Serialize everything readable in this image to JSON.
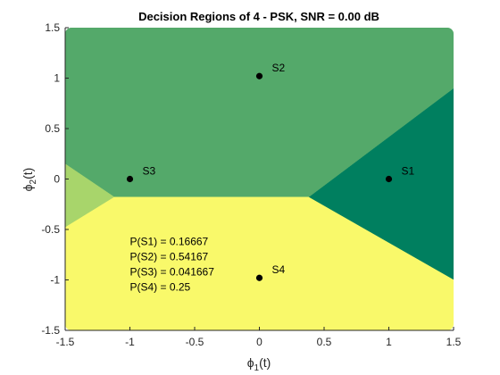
{
  "chart_data": {
    "type": "scatter",
    "title": "Decision Regions of 4 - PSK, SNR = 0.00 dB",
    "xlabel": {
      "base": "ϕ",
      "sub": "1",
      "suffix": "(t)"
    },
    "ylabel": {
      "base": "ϕ",
      "sub": "2",
      "suffix": "(t)"
    },
    "xlim": [
      -1.5,
      1.5
    ],
    "ylim": [
      -1.5,
      1.5
    ],
    "xticks": [
      -1.5,
      -1,
      -0.5,
      0,
      0.5,
      1,
      1.5
    ],
    "yticks": [
      -1.5,
      -1,
      -0.5,
      0,
      0.5,
      1,
      1.5
    ],
    "xtick_labels": [
      "-1.5",
      "-1",
      "-0.5",
      "0",
      "0.5",
      "1",
      "1.5"
    ],
    "ytick_labels": [
      "-1.5",
      "-1",
      "-0.5",
      "0",
      "0.5",
      "1",
      "1.5"
    ],
    "grid": false,
    "points": [
      {
        "label": "S1",
        "x": 1,
        "y": 0
      },
      {
        "label": "S2",
        "x": 0,
        "y": 1.02
      },
      {
        "label": "S3",
        "x": -1,
        "y": 0
      },
      {
        "label": "S4",
        "x": 0,
        "y": -0.98
      }
    ],
    "regions": [
      {
        "name": "S1",
        "color": "#007f5f",
        "polygon": [
          [
            0.38,
            -0.18
          ],
          [
            1.5,
            -1.0
          ],
          [
            1.5,
            0.9
          ]
        ]
      },
      {
        "name": "S2",
        "color": "#54a96a",
        "polygon": [
          [
            -1.5,
            1.5
          ],
          [
            1.5,
            1.5
          ],
          [
            1.5,
            0.9
          ],
          [
            0.38,
            -0.18
          ],
          [
            -1.12,
            -0.18
          ],
          [
            -1.5,
            0.15
          ]
        ]
      },
      {
        "name": "S3",
        "color": "#a8d56b",
        "polygon": [
          [
            -1.5,
            0.15
          ],
          [
            -1.12,
            -0.18
          ],
          [
            -1.5,
            -0.48
          ]
        ]
      },
      {
        "name": "S4",
        "color": "#f9f96a",
        "polygon": [
          [
            -1.5,
            -0.48
          ],
          [
            -1.12,
            -0.18
          ],
          [
            0.38,
            -0.18
          ],
          [
            1.5,
            -1.0
          ],
          [
            1.5,
            -1.5
          ],
          [
            -1.5,
            -1.5
          ]
        ]
      }
    ],
    "annotations": [
      "P(S1) = 0.16667",
      "P(S2) = 0.54167",
      "P(S3) = 0.041667",
      "P(S4) = 0.25"
    ]
  }
}
